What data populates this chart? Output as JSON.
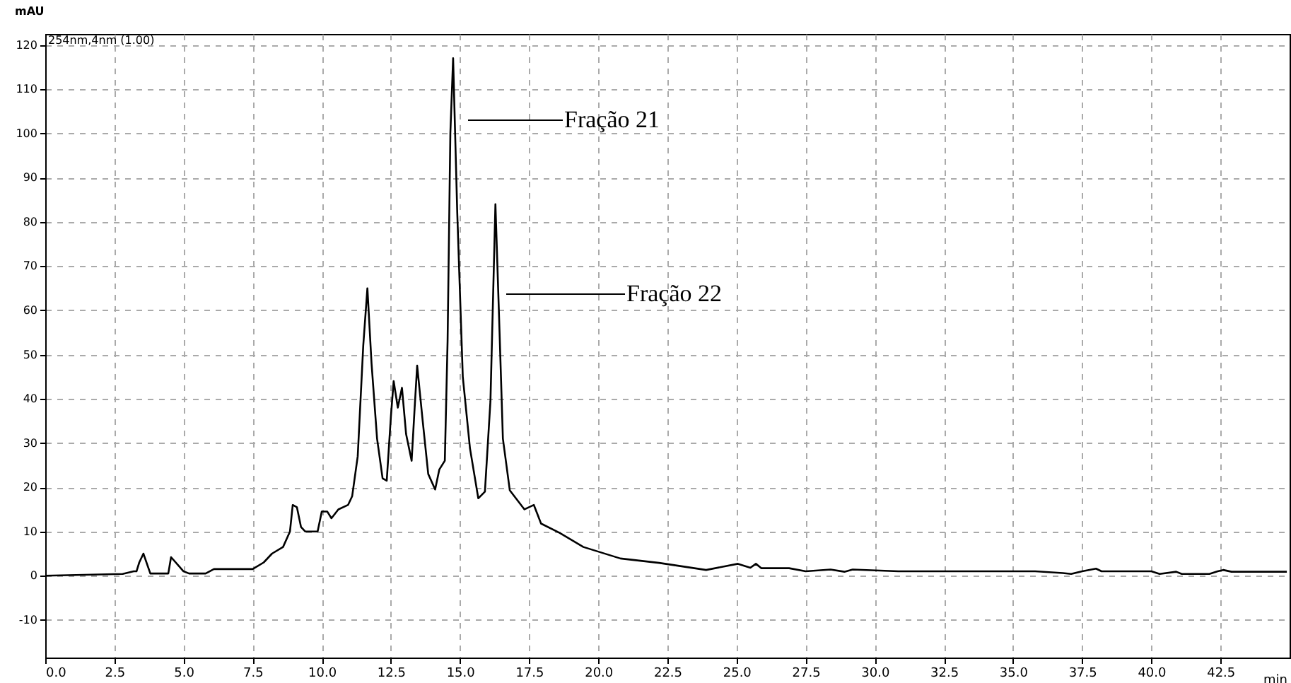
{
  "chart_data": {
    "type": "line",
    "xlabel": "min",
    "ylabel": "mAU",
    "xlim": [
      0,
      45
    ],
    "ylim": [
      -18.5,
      122.5
    ],
    "xticks": [
      {
        "value": 0,
        "label": "0.0"
      },
      {
        "value": 2.5,
        "label": "2.5"
      },
      {
        "value": 5,
        "label": "5.0"
      },
      {
        "value": 7.5,
        "label": "7.5"
      },
      {
        "value": 10,
        "label": "10.0"
      },
      {
        "value": 12.5,
        "label": "12.5"
      },
      {
        "value": 15,
        "label": "15.0"
      },
      {
        "value": 17.5,
        "label": "17.5"
      },
      {
        "value": 20,
        "label": "20.0"
      },
      {
        "value": 22.5,
        "label": "22.5"
      },
      {
        "value": 25,
        "label": "25.0"
      },
      {
        "value": 27.5,
        "label": "27.5"
      },
      {
        "value": 30,
        "label": "30.0"
      },
      {
        "value": 32.5,
        "label": "32.5"
      },
      {
        "value": 35,
        "label": "35.0"
      },
      {
        "value": 37.5,
        "label": "37.5"
      },
      {
        "value": 40,
        "label": "40.0"
      },
      {
        "value": 42.5,
        "label": "42.5"
      }
    ],
    "yticks": [
      -10,
      0,
      10,
      20,
      30,
      40,
      50,
      60,
      70,
      80,
      90,
      100,
      110,
      120
    ],
    "grid": true,
    "annotations": [
      "254nm,4nm (1.00)",
      "Fração 21",
      "Fração 22"
    ],
    "x": [
      0,
      2.8,
      3.2,
      3.3,
      3.4,
      3.55,
      3.8,
      4.45,
      4.55,
      5.0,
      5.2,
      5.8,
      6.1,
      7.5,
      7.9,
      8.2,
      8.6,
      8.85,
      8.95,
      9.1,
      9.25,
      9.4,
      9.85,
      10.0,
      10.2,
      10.35,
      10.6,
      10.95,
      11.1,
      11.3,
      11.5,
      11.65,
      11.8,
      12.0,
      12.2,
      12.35,
      12.5,
      12.6,
      12.75,
      12.9,
      13.05,
      13.25,
      13.35,
      13.45,
      13.65,
      13.85,
      14.1,
      14.25,
      14.45,
      14.55,
      14.65,
      14.75,
      14.9,
      15.1,
      15.36,
      15.66,
      15.9,
      16.1,
      16.28,
      16.43,
      16.55,
      16.8,
      17.33,
      17.67,
      17.93,
      18.6,
      19.46,
      20.8,
      22.2,
      23.9,
      25.05,
      25.5,
      25.7,
      25.9,
      26.9,
      27.5,
      28.4,
      28.9,
      29.2,
      30.85,
      35.8,
      36.8,
      37.1,
      37.5,
      38.0,
      38.2,
      40.0,
      40.3,
      40.9,
      41.1,
      42.1,
      42.4,
      42.6,
      42.9,
      44.9
    ],
    "series": [
      {
        "color": "#000000",
        "values": [
          0,
          0.4,
          1,
          1,
          3,
          5,
          0.5,
          0.5,
          4.2,
          1,
          0.5,
          0.5,
          1.5,
          1.5,
          3,
          5,
          6.5,
          10,
          16,
          15.5,
          11,
          10,
          10,
          14.5,
          14.5,
          13,
          15,
          16,
          18,
          27,
          52,
          65,
          48,
          31,
          22,
          21.5,
          36,
          44,
          38,
          42.5,
          32,
          26,
          37,
          47.5,
          35,
          23,
          19.5,
          24,
          26,
          53,
          100,
          117,
          82,
          45,
          28.8,
          17.5,
          19,
          39.5,
          84,
          55,
          31,
          19.3,
          15,
          16,
          11.8,
          9.7,
          6.5,
          3.9,
          2.9,
          1.3,
          2.7,
          1.8,
          2.7,
          1.7,
          1.7,
          1,
          1.4,
          0.9,
          1.4,
          1,
          1,
          0.6,
          0.4,
          1,
          1.6,
          1,
          1,
          0.4,
          0.9,
          0.4,
          0.4,
          1,
          1.3,
          0.9,
          0.9
        ]
      }
    ]
  }
}
